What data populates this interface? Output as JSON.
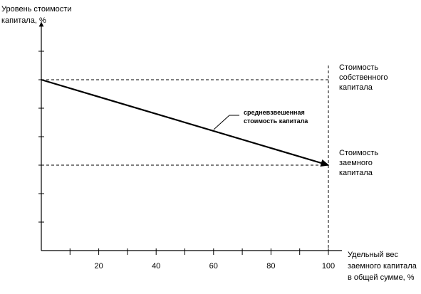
{
  "chart_data": {
    "type": "line",
    "ylabel": [
      "Уровень стоимости",
      "капитала, %"
    ],
    "xlabel": [
      "Удельный вес",
      "заемного капитала",
      "в общей сумме, %"
    ],
    "x_ticks": [
      20,
      40,
      60,
      80,
      100
    ],
    "xlim": [
      0,
      100
    ],
    "y_ticks": [
      1,
      2,
      3,
      4,
      5,
      6,
      7
    ],
    "ylim": [
      0,
      8
    ],
    "grid": false,
    "reference_lines": [
      {
        "type": "horizontal",
        "y": 6,
        "style": "dashed",
        "label": [
          "Стоимость",
          "собственного",
          "капитала"
        ]
      },
      {
        "type": "horizontal",
        "y": 3,
        "style": "dashed",
        "label": [
          "Стоимость",
          "заемного",
          "капитала"
        ]
      },
      {
        "type": "vertical",
        "x": 100,
        "style": "dashed"
      }
    ],
    "series": [
      {
        "name": [
          "средневзвешенная",
          "стоимость капитала"
        ],
        "x": [
          0,
          100
        ],
        "y": [
          6,
          3
        ],
        "arrow": true
      }
    ]
  }
}
